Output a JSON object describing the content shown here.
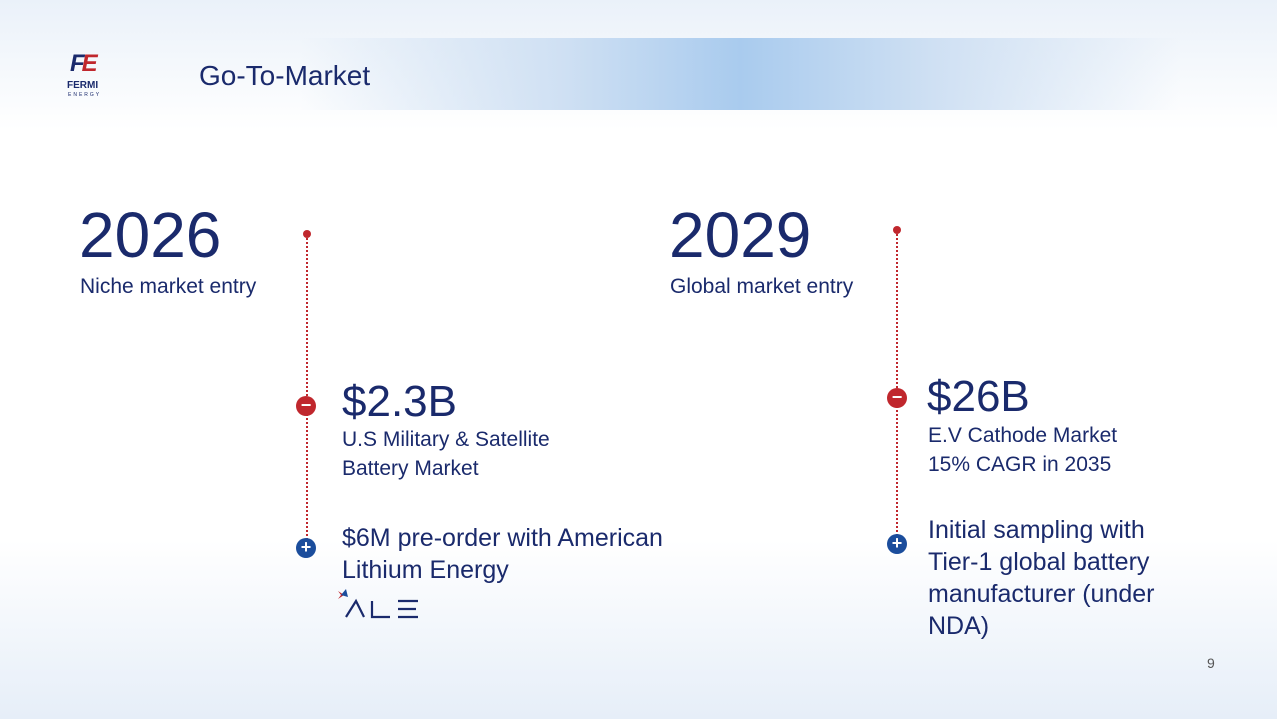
{
  "header": {
    "title": "Go-To-Market",
    "logo": {
      "mark_f": "F",
      "mark_e": "E",
      "name": "FERMI",
      "sub": "ENERGY"
    }
  },
  "timeline": [
    {
      "year": "2026",
      "label": "Niche market entry",
      "market_value": "$2.3B",
      "market_desc_line1": "U.S  Military & Satellite",
      "market_desc_line2": "Battery Market",
      "milestone_line1": "$6M pre-order with American",
      "milestone_line2": "Lithium Energy"
    },
    {
      "year": "2029",
      "label": "Global market entry",
      "market_value": "$26B",
      "market_desc_line1": "E.V Cathode Market",
      "market_desc_line2": "15% CAGR in 2035",
      "milestone_line1": "Initial sampling with",
      "milestone_line2": "Tier-1 global battery",
      "milestone_line3": "manufacturer (under",
      "milestone_line4": "NDA)"
    }
  ],
  "partner_logo": {
    "text": "ALE"
  },
  "page_number": "9",
  "colors": {
    "navy": "#1a2a6c",
    "red": "#c0272d",
    "blue": "#1b4d9c"
  },
  "icons": {
    "minus": "minus-circle-icon",
    "plus": "plus-circle-icon"
  }
}
